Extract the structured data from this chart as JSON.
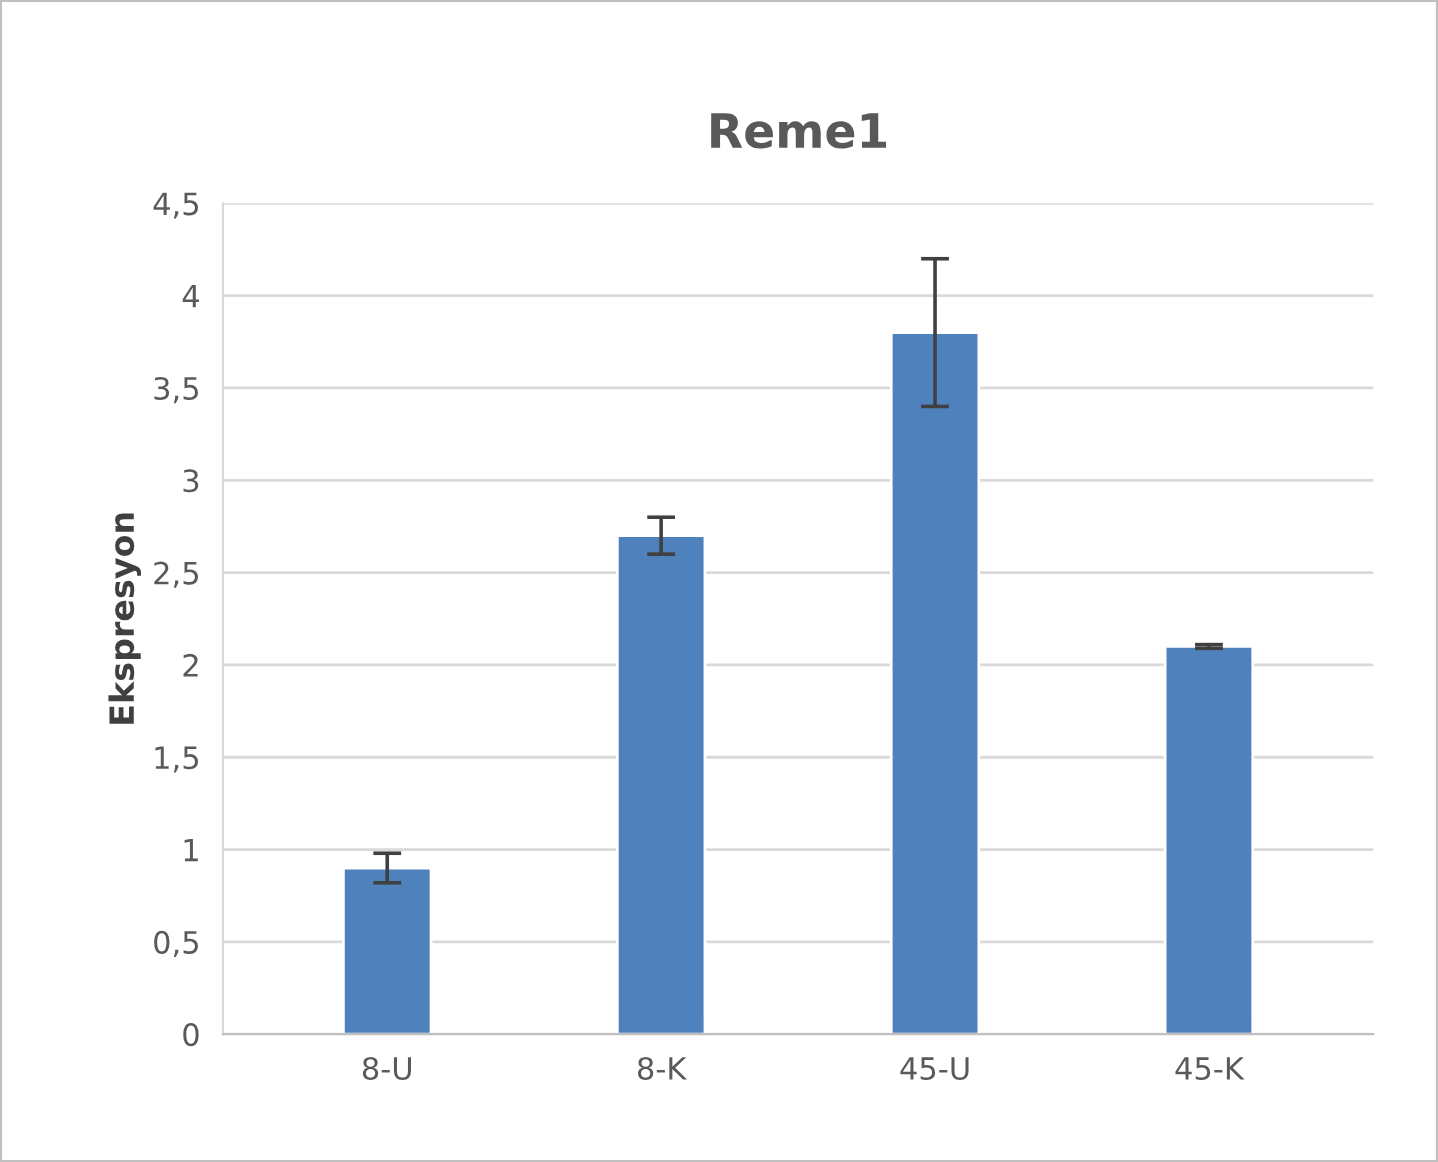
{
  "chart_data": {
    "type": "bar",
    "title": "Reme1",
    "ylabel": "Ekspresyon",
    "categories": [
      "8-U",
      "8-K",
      "45-U",
      "45-K"
    ],
    "values": [
      0.9,
      2.7,
      3.8,
      2.1
    ],
    "errors": [
      0.08,
      0.1,
      0.4,
      0.01
    ],
    "color": "#4f81bd",
    "ylim": [
      0,
      4.5
    ],
    "yticks": [
      0,
      {
        "value": 0.5,
        "label": "0,5"
      },
      1,
      {
        "value": 1.5,
        "label": "1,5"
      },
      2,
      {
        "value": 2.5,
        "label": "2,5"
      },
      3,
      {
        "value": 3.5,
        "label": "3,5"
      },
      4,
      {
        "value": 4.5,
        "label": "4,5"
      }
    ],
    "grid": "y"
  }
}
